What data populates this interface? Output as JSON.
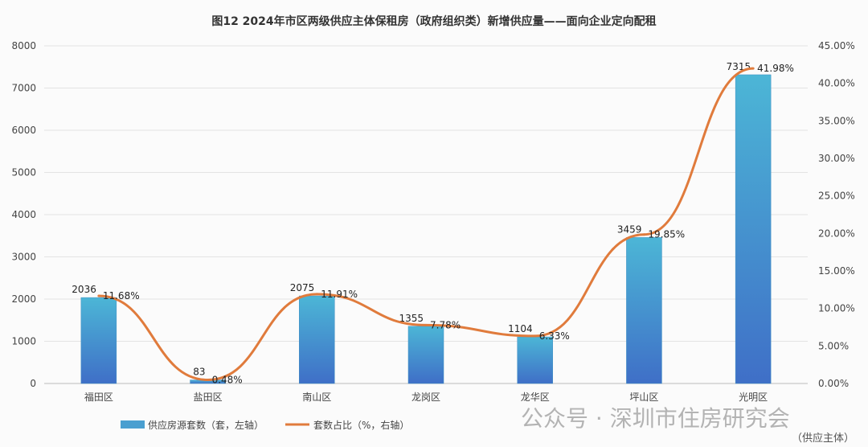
{
  "chart_data": {
    "type": "bar+line",
    "title": "图12 2024年市区两级供应主体保租房（政府组织类）新增供应量——面向企业定向配租",
    "categories": [
      "福田区",
      "盐田区",
      "南山区",
      "龙岗区",
      "龙华区",
      "坪山区",
      "光明区"
    ],
    "series": [
      {
        "name": "供应房源套数（套，左轴）",
        "type": "bar",
        "axis": "left",
        "values": [
          2036,
          83,
          2075,
          1355,
          1104,
          3459,
          7315
        ],
        "labels": [
          "2036",
          "83",
          "2075",
          "1355",
          "1104",
          "3459",
          "7315"
        ],
        "color": "#4a9fd0"
      },
      {
        "name": "套数占比（%，右轴）",
        "type": "line",
        "axis": "right",
        "values": [
          11.68,
          0.48,
          11.91,
          7.78,
          6.33,
          19.85,
          41.98
        ],
        "labels": [
          "11.68%",
          "0.48%",
          "11.91%",
          "7.78%",
          "6.33%",
          "19.85%",
          "41.98%"
        ],
        "color": "#e07b3c"
      }
    ],
    "ylim_left": [
      0,
      8000
    ],
    "yticks_left": [
      "0",
      "1000",
      "2000",
      "3000",
      "4000",
      "5000",
      "6000",
      "7000",
      "8000"
    ],
    "ylim_right": [
      0,
      45
    ],
    "yticks_right": [
      "0.00%",
      "5.00%",
      "10.00%",
      "15.00%",
      "20.00%",
      "25.00%",
      "30.00%",
      "35.00%",
      "40.00%",
      "45.00%"
    ],
    "grid": true,
    "legend": "bottom"
  },
  "watermark": "公众号 · 深圳市住房研究会",
  "source": "（供应主体）"
}
